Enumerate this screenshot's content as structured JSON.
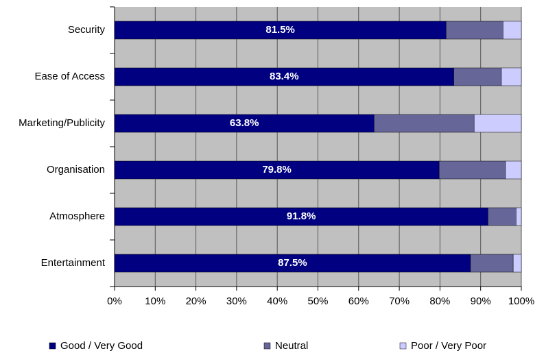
{
  "chart_data": {
    "type": "stacked-bar-horizontal",
    "categories": [
      "Security",
      "Ease of Access",
      "Marketing/Publicity",
      "Organisation",
      "Atmosphere",
      "Entertainment"
    ],
    "series": [
      {
        "name": "Good / Very Good",
        "color": "#000080",
        "values": [
          81.5,
          83.4,
          63.8,
          79.8,
          91.8,
          87.5
        ],
        "value_labels": [
          "81.5%",
          "83.4%",
          "63.8%",
          "79.8%",
          "91.8%",
          "87.5%"
        ]
      },
      {
        "name": "Neutral",
        "color": "#666699",
        "values": [
          14.0,
          11.7,
          24.6,
          16.3,
          6.9,
          10.5
        ]
      },
      {
        "name": "Poor / Very Poor",
        "color": "#ccccff",
        "values": [
          4.5,
          4.9,
          11.6,
          3.9,
          1.3,
          2.0
        ]
      }
    ],
    "xlim": [
      0,
      100
    ],
    "xticks": [
      {
        "value": 0,
        "label": "0%"
      },
      {
        "value": 10,
        "label": "10%"
      },
      {
        "value": 20,
        "label": "20%"
      },
      {
        "value": 30,
        "label": "30%"
      },
      {
        "value": 40,
        "label": "40%"
      },
      {
        "value": 50,
        "label": "50%"
      },
      {
        "value": 60,
        "label": "60%"
      },
      {
        "value": 70,
        "label": "70%"
      },
      {
        "value": 80,
        "label": "80%"
      },
      {
        "value": 90,
        "label": "90%"
      },
      {
        "value": 100,
        "label": "100%"
      }
    ],
    "grid": true,
    "plot_background": "#c0c0c0",
    "legend": "bottom"
  }
}
